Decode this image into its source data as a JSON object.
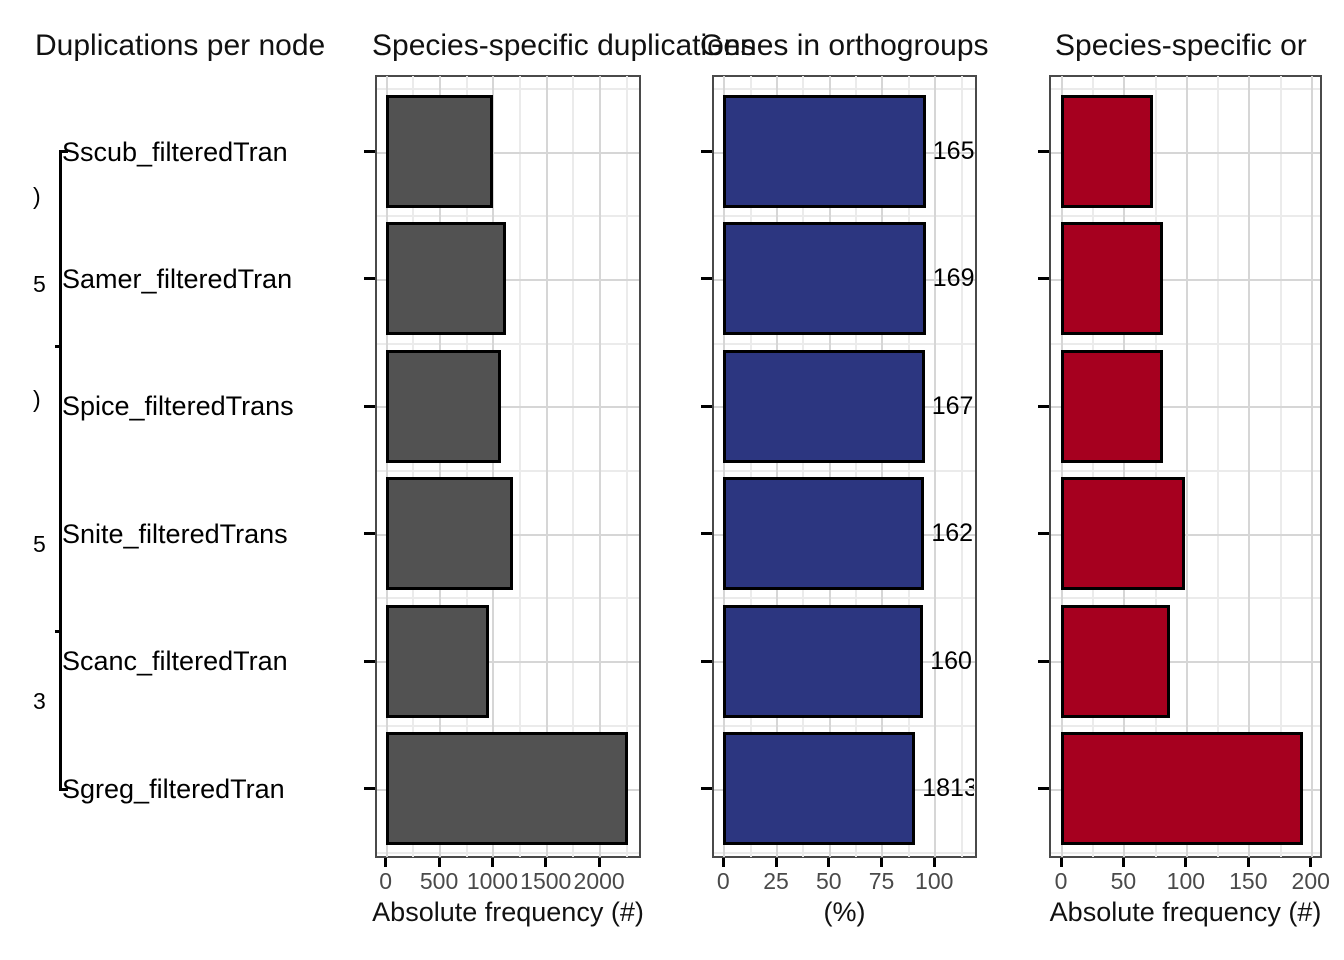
{
  "figure": {
    "panel_titles": [
      "Duplications per node",
      "Species-specific duplications",
      "Genes in orthogroups",
      "Species-specific or"
    ]
  },
  "tree": {
    "tip_labels": [
      "Sscub_filteredTran",
      "Samer_filteredTran",
      "Spice_filteredTrans",
      "Snite_filteredTrans",
      "Scanc_filteredTran",
      "Sgreg_filteredTran"
    ],
    "node_labels_clipped": [
      ")",
      "5",
      ")",
      "5",
      "3"
    ]
  },
  "chart_data": [
    {
      "type": "bar",
      "orientation": "horizontal",
      "title": "Species-specific duplications",
      "categories": [
        "Sscub_filteredTran",
        "Samer_filteredTran",
        "Spice_filteredTrans",
        "Snite_filteredTrans",
        "Scanc_filteredTran",
        "Sgreg_filteredTran"
      ],
      "values": [
        1005,
        1125,
        1080,
        1190,
        970,
        2275
      ],
      "xlabel": "Absolute frequency (#)",
      "xticks": [
        0,
        500,
        1000,
        1500,
        2000
      ],
      "xtick_labels": [
        "0",
        "500",
        "1000",
        "1500",
        "2000"
      ],
      "xlim": [
        0,
        2390
      ],
      "minor_step": 250,
      "grid": true,
      "bar_color": "#525252"
    },
    {
      "type": "bar",
      "orientation": "horizontal",
      "title": "Genes in orthogroups",
      "categories": [
        "Sscub_filteredTran",
        "Samer_filteredTran",
        "Spice_filteredTrans",
        "Snite_filteredTrans",
        "Scanc_filteredTran",
        "Sgreg_filteredTran"
      ],
      "values": [
        96,
        96,
        95.5,
        95.3,
        94.8,
        91
      ],
      "bar_labels": [
        "165",
        "169",
        "167",
        "162",
        "160",
        "1813"
      ],
      "xlabel": "(%)",
      "xticks": [
        0,
        25,
        50,
        75,
        100
      ],
      "xtick_labels": [
        "0",
        "25",
        "50",
        "75",
        "100"
      ],
      "xlim": [
        0,
        120
      ],
      "minor_step": 12.5,
      "grid": true,
      "bar_color": "#2c3680"
    },
    {
      "type": "bar",
      "orientation": "horizontal",
      "title": "Species-specific or",
      "categories": [
        "Sscub_filteredTran",
        "Samer_filteredTran",
        "Spice_filteredTrans",
        "Snite_filteredTrans",
        "Scanc_filteredTran",
        "Sgreg_filteredTran"
      ],
      "values": [
        74,
        82,
        82,
        99,
        87,
        194
      ],
      "xlabel": "Absolute frequency (#)",
      "xticks": [
        0,
        50,
        100,
        150,
        200
      ],
      "xtick_labels": [
        "0",
        "50",
        "100",
        "150",
        "200"
      ],
      "xlim": [
        0,
        209
      ],
      "minor_step": 25,
      "grid": true,
      "bar_color": "#a6001f"
    }
  ],
  "colors": {
    "bar_gray": "#525252",
    "bar_blue": "#2c3680",
    "bar_red": "#a6001f",
    "bar_stroke": "#000000",
    "panel_border": "#4a4a4a",
    "grid_major": "#d6d6d6",
    "grid_minor": "#ebebeb",
    "title_text": "#111111",
    "tick_text": "#4a4a4a"
  }
}
